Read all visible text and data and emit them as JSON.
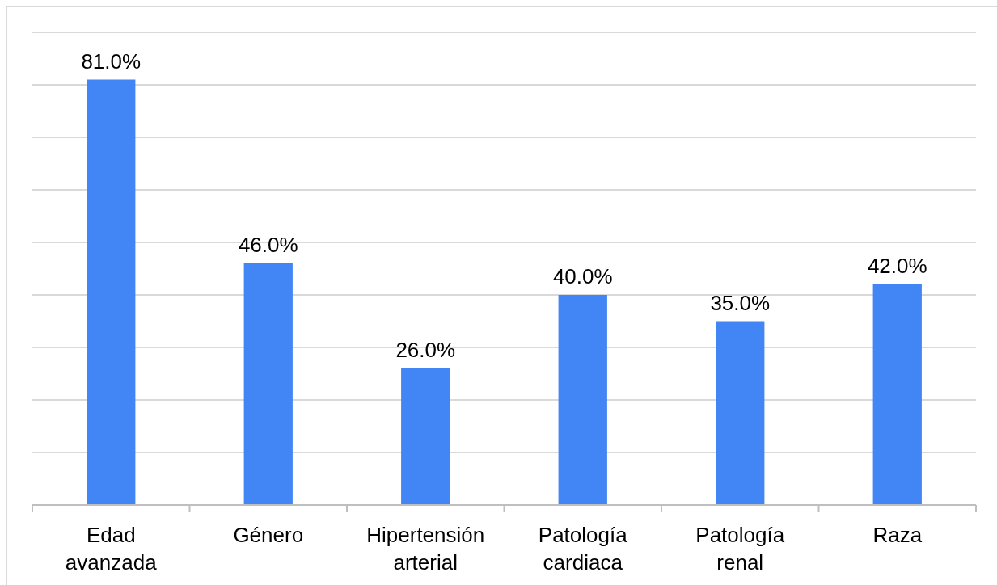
{
  "chart_data": {
    "type": "bar",
    "categories": [
      "Edad avanzada",
      "Género",
      "Hipertensión arterial",
      "Patología cardiaca",
      "Patología renal",
      "Raza"
    ],
    "values": [
      81,
      46,
      26,
      40,
      35,
      42
    ],
    "value_labels": [
      "81.0%",
      "46.0%",
      "26.0%",
      "40.0%",
      "35.0%",
      "42.0%"
    ],
    "color": "#4285f4",
    "ylim": [
      0,
      90
    ],
    "yticks": [
      {
        "value": 0,
        "label": null
      },
      {
        "value": 10,
        "label": null
      },
      {
        "value": 20,
        "label": null
      },
      {
        "value": 30,
        "label": null
      },
      {
        "value": 40,
        "label": null
      },
      {
        "value": 50,
        "label": null
      },
      {
        "value": 60,
        "label": null
      },
      {
        "value": 70,
        "label": null
      },
      {
        "value": 80,
        "label": null
      },
      {
        "value": 90,
        "label": null
      }
    ],
    "grid": "y",
    "tick_labels": "x"
  }
}
